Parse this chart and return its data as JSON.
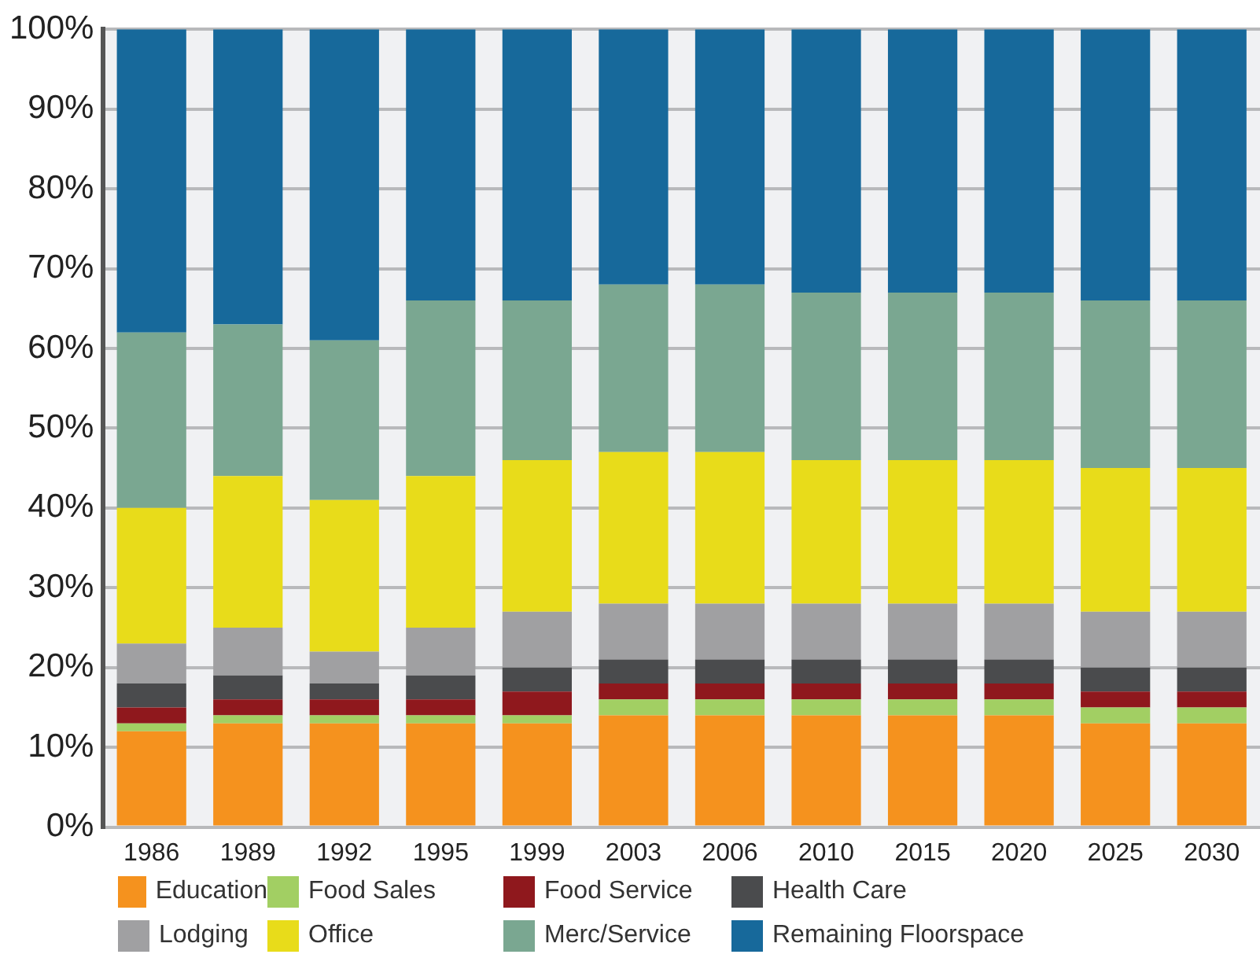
{
  "chart_data": {
    "type": "bar",
    "stacked": true,
    "categories": [
      "1986",
      "1989",
      "1992",
      "1995",
      "1999",
      "2003",
      "2006",
      "2010",
      "2015",
      "2020",
      "2025",
      "2030"
    ],
    "series": [
      {
        "name": "Education",
        "color": "#f5921e",
        "values": [
          12,
          13,
          13,
          13,
          13,
          14,
          14,
          14,
          14,
          14,
          13,
          13
        ]
      },
      {
        "name": "Food Sales",
        "color": "#a2cf63",
        "values": [
          1,
          1,
          1,
          1,
          1,
          2,
          2,
          2,
          2,
          2,
          2,
          2
        ]
      },
      {
        "name": "Food Service",
        "color": "#8f181d",
        "values": [
          2,
          2,
          2,
          2,
          3,
          2,
          2,
          2,
          2,
          2,
          2,
          2
        ]
      },
      {
        "name": "Health Care",
        "color": "#4a4b4d",
        "values": [
          3,
          3,
          2,
          3,
          3,
          3,
          3,
          3,
          3,
          3,
          3,
          3
        ]
      },
      {
        "name": "Lodging",
        "color": "#a0a0a2",
        "values": [
          5,
          6,
          4,
          6,
          7,
          7,
          7,
          7,
          7,
          7,
          7,
          7
        ]
      },
      {
        "name": "Office",
        "color": "#e8dc1a",
        "values": [
          17,
          19,
          19,
          19,
          19,
          19,
          19,
          18,
          18,
          18,
          18,
          18
        ]
      },
      {
        "name": "Merc/Service",
        "color": "#7aa791",
        "values": [
          22,
          19,
          20,
          22,
          20,
          21,
          21,
          21,
          21,
          21,
          21,
          21
        ]
      },
      {
        "name": "Remaining Floorspace",
        "color": "#17699b",
        "values": [
          38,
          37,
          39,
          34,
          34,
          32,
          32,
          33,
          33,
          33,
          34,
          34
        ]
      }
    ],
    "ylim": [
      0,
      100
    ],
    "yticks": [
      {
        "value": 0,
        "label": "0%"
      },
      {
        "value": 10,
        "label": "10%"
      },
      {
        "value": 20,
        "label": "20%"
      },
      {
        "value": 30,
        "label": "30%"
      },
      {
        "value": 40,
        "label": "40%"
      },
      {
        "value": 50,
        "label": "50%"
      },
      {
        "value": 60,
        "label": "60%"
      },
      {
        "value": 70,
        "label": "70%"
      },
      {
        "value": 80,
        "label": "80%"
      },
      {
        "value": 90,
        "label": "90%"
      },
      {
        "value": 100,
        "label": "100%"
      }
    ],
    "grid": "y",
    "legend": "bottom"
  }
}
